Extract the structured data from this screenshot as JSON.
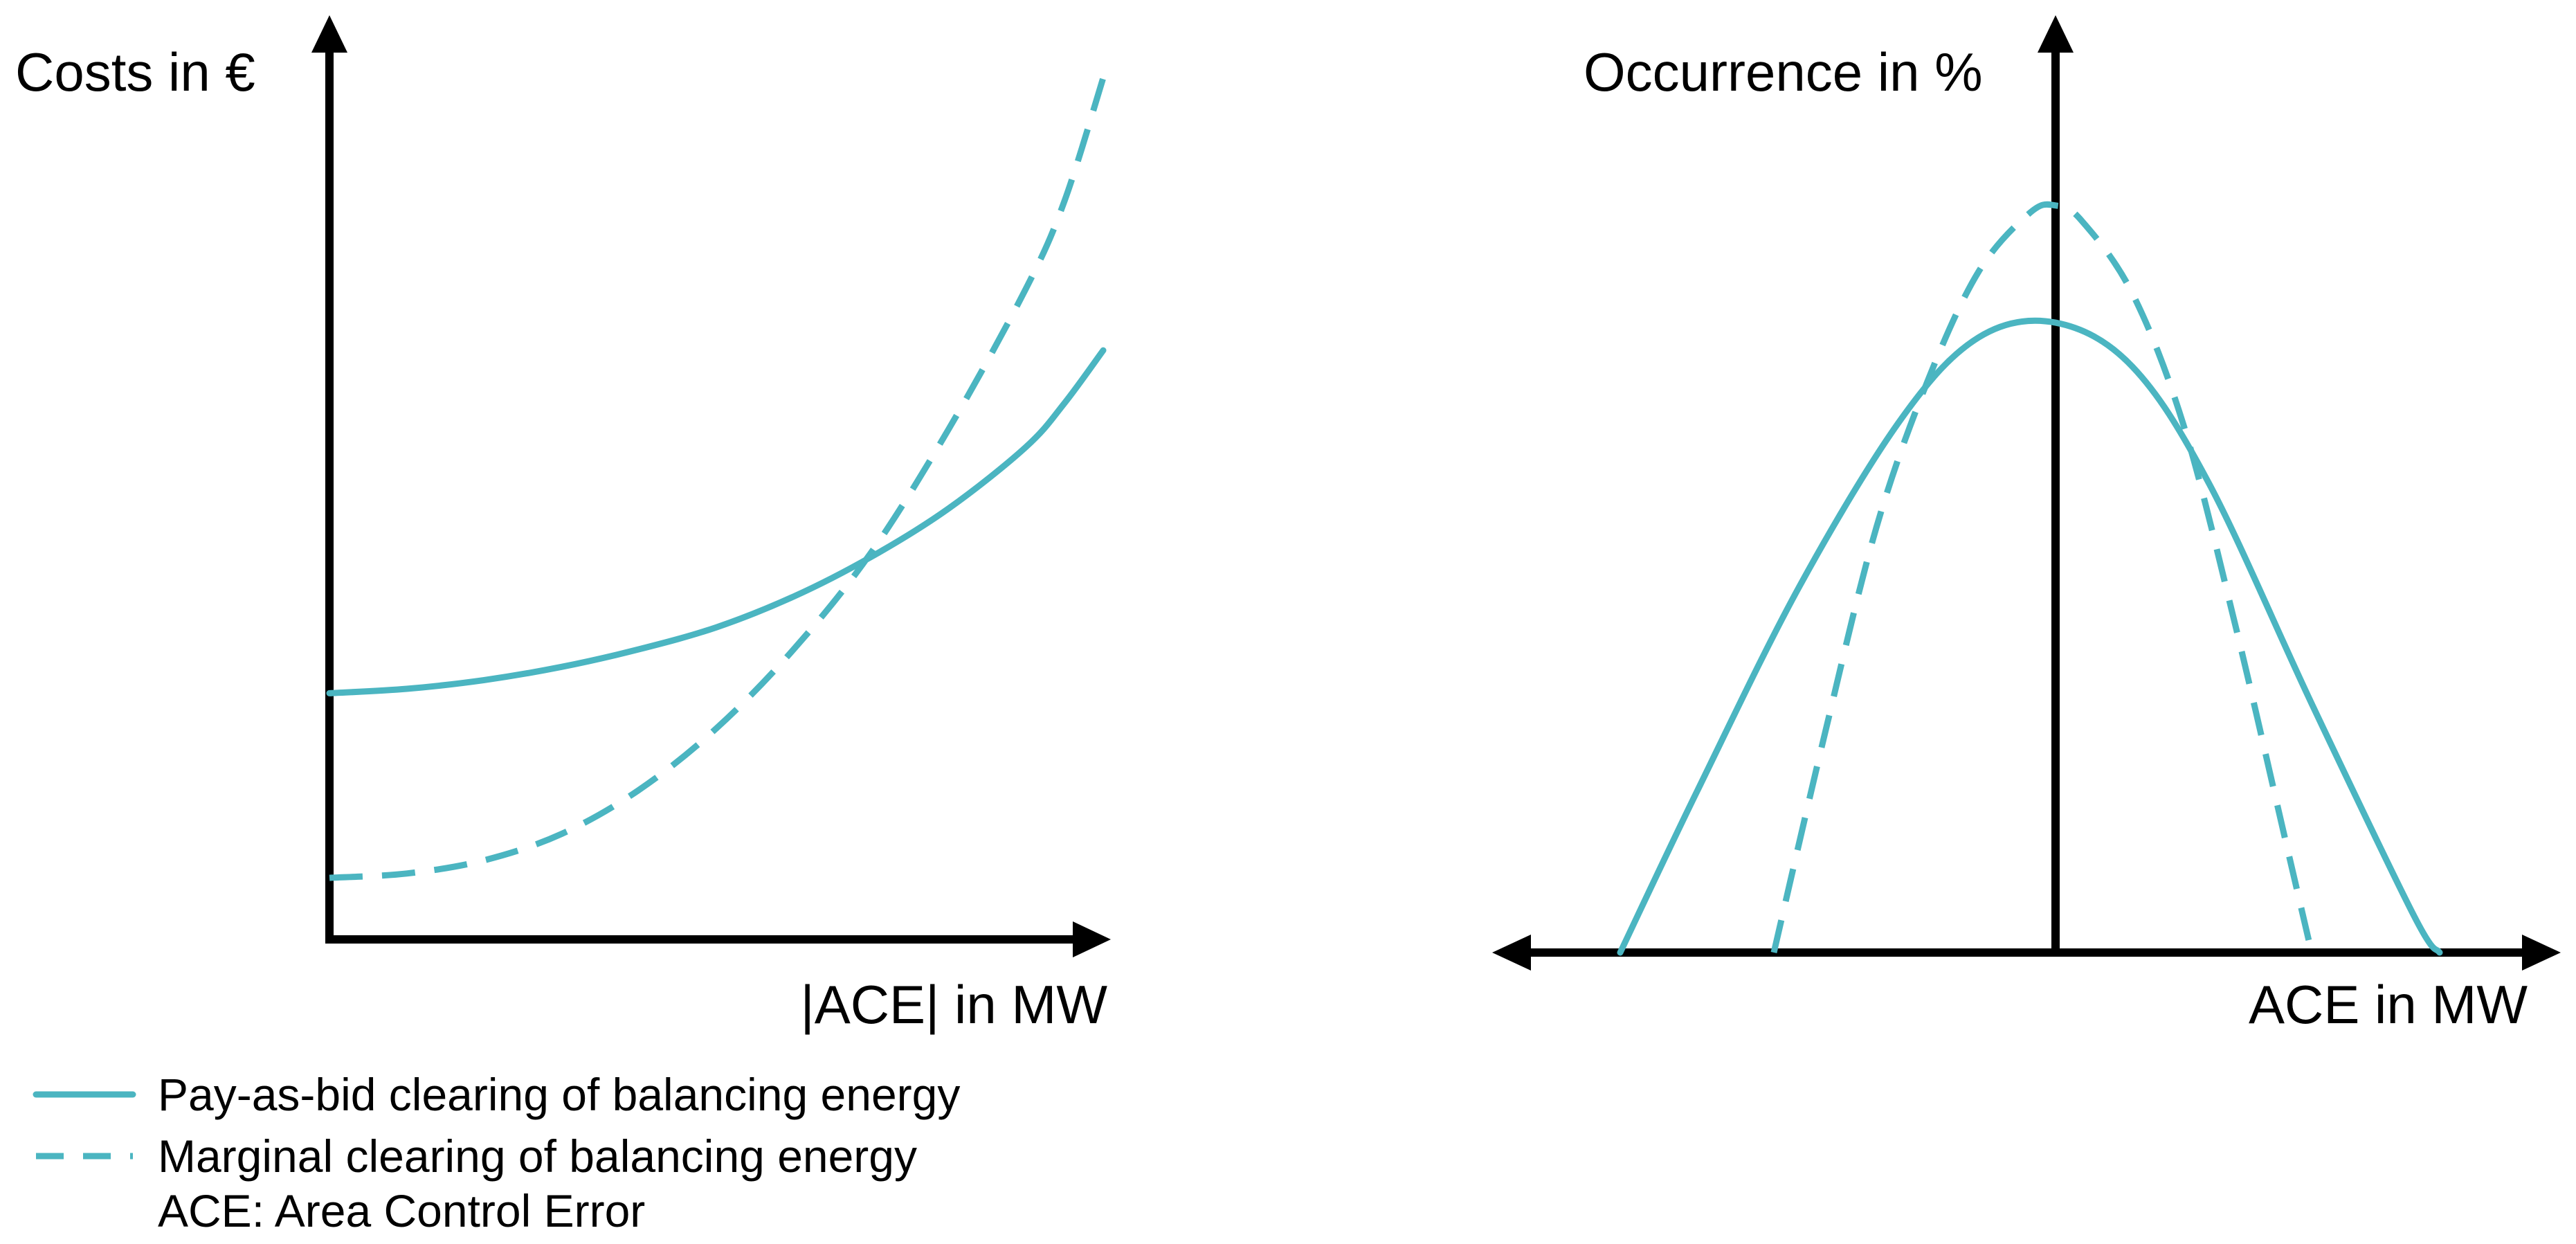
{
  "colors": {
    "curve": "#4bb5c1",
    "axis": "#000000",
    "background": "#ffffff"
  },
  "chart_data": [
    {
      "type": "line",
      "title": "",
      "ylabel": "Costs in €",
      "xlabel": "|ACE| in MW",
      "x_range": [
        0,
        1
      ],
      "y_range": [
        0,
        1
      ],
      "grid": false,
      "series": [
        {
          "name": "Pay-as-bid clearing of balancing energy",
          "style": "solid",
          "x": [
            0,
            0.1,
            0.2,
            0.3,
            0.4,
            0.5,
            0.6,
            0.7,
            0.8,
            0.9,
            0.95,
            1.0
          ],
          "y": [
            0.28,
            0.285,
            0.295,
            0.31,
            0.33,
            0.355,
            0.39,
            0.435,
            0.49,
            0.56,
            0.61,
            0.67
          ]
        },
        {
          "name": "Marginal clearing of balancing energy",
          "style": "dashed",
          "x": [
            0,
            0.1,
            0.2,
            0.3,
            0.4,
            0.5,
            0.6,
            0.7,
            0.8,
            0.9,
            0.95,
            1.0
          ],
          "y": [
            0.07,
            0.075,
            0.09,
            0.12,
            0.17,
            0.24,
            0.33,
            0.44,
            0.58,
            0.74,
            0.84,
            0.98
          ]
        }
      ]
    },
    {
      "type": "line",
      "title": "",
      "ylabel": "Occurrence in %",
      "xlabel": "ACE in MW",
      "x_range": [
        -1,
        1
      ],
      "y_range": [
        0,
        1
      ],
      "grid": false,
      "series": [
        {
          "name": "Pay-as-bid clearing of balancing energy",
          "style": "solid",
          "x": [
            -0.85,
            -0.7,
            -0.5,
            -0.3,
            -0.15,
            0,
            0.15,
            0.3,
            0.5,
            0.7,
            0.75
          ],
          "y": [
            0.0,
            0.22,
            0.5,
            0.73,
            0.84,
            0.86,
            0.8,
            0.64,
            0.34,
            0.05,
            0.0
          ]
        },
        {
          "name": "Marginal clearing of balancing energy",
          "style": "dashed",
          "x": [
            -0.55,
            -0.45,
            -0.35,
            -0.25,
            -0.15,
            -0.05,
            0,
            0.05,
            0.15,
            0.25,
            0.35,
            0.45,
            0.5
          ],
          "y": [
            0.0,
            0.3,
            0.58,
            0.78,
            0.93,
            1.01,
            1.02,
            1.0,
            0.9,
            0.72,
            0.45,
            0.15,
            0.0
          ]
        }
      ]
    }
  ],
  "legend": {
    "items": [
      {
        "style": "solid",
        "label": "Pay-as-bid clearing of balancing energy"
      },
      {
        "style": "dashed",
        "label": "Marginal clearing of balancing energy"
      }
    ],
    "note": "ACE:  Area Control Error"
  }
}
